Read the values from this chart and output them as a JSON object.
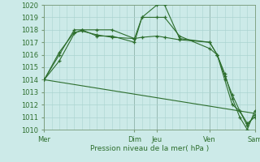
{
  "title": "Pression niveau de la mer( hPa )",
  "ylim": [
    1010,
    1020
  ],
  "yticks": [
    1010,
    1011,
    1012,
    1013,
    1014,
    1015,
    1016,
    1017,
    1018,
    1019,
    1020
  ],
  "xtick_labels": [
    "Mer",
    "Dim",
    "Jeu",
    "Ven",
    "Sam"
  ],
  "xtick_positions": [
    0,
    12,
    15,
    22,
    28
  ],
  "bg_color": "#cceae8",
  "grid_color": "#aad4d0",
  "line_color": "#2d6e2d",
  "xlim": [
    0,
    28
  ],
  "series": [
    {
      "x": [
        0,
        2,
        4,
        5,
        7,
        9,
        12,
        13,
        15,
        16,
        18,
        22,
        23,
        24,
        25,
        26,
        27,
        28
      ],
      "y": [
        1014,
        1015.5,
        1017.7,
        1018.0,
        1018.0,
        1018.0,
        1017.3,
        1019.0,
        1020.0,
        1020.0,
        1017.3,
        1017.0,
        1016.0,
        1014.5,
        1012.5,
        1011.0,
        1010.0,
        1011.5
      ],
      "has_markers": true
    },
    {
      "x": [
        0,
        2,
        4,
        5,
        7,
        9,
        12,
        13,
        15,
        16,
        18,
        22,
        23,
        24,
        25,
        26,
        27,
        28
      ],
      "y": [
        1014,
        1016.0,
        1018.0,
        1018.0,
        1017.5,
        1017.5,
        1017.0,
        1019.0,
        1019.0,
        1019.0,
        1017.5,
        1016.5,
        1016.0,
        1014.0,
        1012.0,
        1011.5,
        1010.5,
        1011.0
      ],
      "has_markers": true
    },
    {
      "x": [
        0,
        2,
        4,
        5,
        7,
        9,
        12,
        13,
        15,
        16,
        18,
        22,
        23,
        24,
        25,
        26,
        27,
        28
      ],
      "y": [
        1014,
        1016.2,
        1017.8,
        1017.9,
        1017.6,
        1017.4,
        1017.3,
        1017.4,
        1017.5,
        1017.4,
        1017.2,
        1017.0,
        1016.0,
        1014.3,
        1012.8,
        1011.5,
        1010.3,
        1011.2
      ],
      "has_markers": true
    },
    {
      "x": [
        0,
        28
      ],
      "y": [
        1014,
        1011.3
      ],
      "has_markers": false
    }
  ],
  "vlines_x": [
    0,
    12,
    15,
    22,
    28
  ],
  "vline_color": "#556655"
}
